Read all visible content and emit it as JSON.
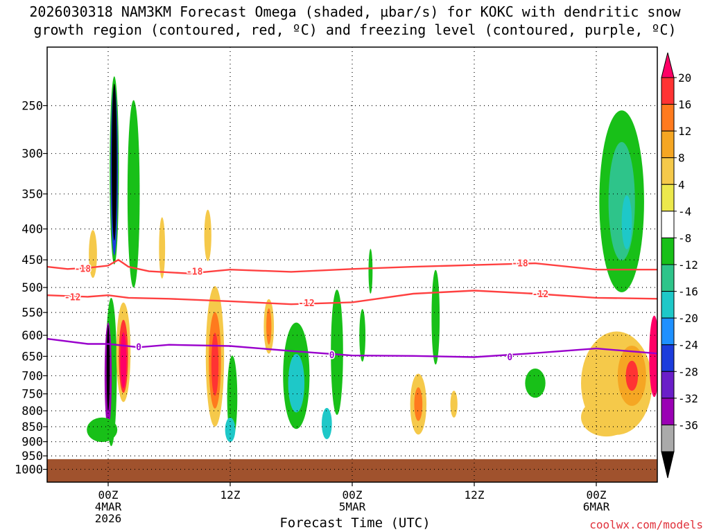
{
  "title_line1": "2026030318 NAM3KM Forecast Omega (shaded, µbar/s) for KOKC with dendritic snow",
  "title_line2": "growth region (contoured, red, ºC) and freezing level (contoured, purple, ºC)",
  "x_axis_title": "Forecast Time (UTC)",
  "credit": "coolwx.com/models",
  "chart_data": {
    "type": "heatmap",
    "title": "2026030318 NAM3KM Forecast Omega (shaded, µbar/s) for KOKC with dendritic snow growth region (contoured, red, ºC) and freezing level (contoured, purple, ºC)",
    "xlabel": "Forecast Time (UTC)",
    "ylabel": "",
    "x_range_hours_from_00Z_4MAR2026": [
      -6,
      54
    ],
    "y_range_hPa": [
      200,
      1050
    ],
    "y_scale": "log",
    "grid": true,
    "x_ticks": [
      {
        "hour": 0,
        "lines": [
          "00Z",
          "4MAR",
          "2026"
        ]
      },
      {
        "hour": 12,
        "lines": [
          "12Z"
        ]
      },
      {
        "hour": 24,
        "lines": [
          "00Z",
          "5MAR"
        ]
      },
      {
        "hour": 36,
        "lines": [
          "12Z"
        ]
      },
      {
        "hour": 48,
        "lines": [
          "00Z",
          "6MAR"
        ]
      }
    ],
    "y_ticks": [
      250,
      300,
      350,
      400,
      450,
      500,
      550,
      600,
      650,
      700,
      750,
      800,
      850,
      900,
      950,
      1000
    ],
    "colorbar": {
      "labels": [
        "20",
        "16",
        "12",
        "8",
        "4",
        "-4",
        "-8",
        "-12",
        "-16",
        "-20",
        "-24",
        "-28",
        "-32",
        "-36"
      ],
      "colors": [
        "#ff0066",
        "#ff3333",
        "#ff7a1e",
        "#f5a623",
        "#f5c94a",
        "#ece84c",
        "#ffffff",
        "#18c018",
        "#2ec48a",
        "#1ec8c8",
        "#1e90ff",
        "#1c3cdc",
        "#6a1ec8",
        "#9a00b4",
        "#aaaaaa",
        "#000000"
      ]
    },
    "ground_level_hPa": 962,
    "ground_color": "#a0522d",
    "contours": [
      {
        "level": "-18",
        "color": "#ff4040",
        "hours": [
          -6,
          -4,
          -2,
          0,
          1,
          2,
          4,
          8,
          12,
          18,
          24,
          30,
          36,
          42,
          48,
          54
        ],
        "hPa": [
          462,
          466,
          464,
          460,
          450,
          462,
          470,
          474,
          467,
          471,
          466,
          462,
          459,
          456,
          467,
          467
        ]
      },
      {
        "level": "-12",
        "color": "#ff4040",
        "hours": [
          -6,
          -2,
          0,
          2,
          6,
          12,
          18,
          24,
          30,
          36,
          42,
          48,
          54
        ],
        "hPa": [
          515,
          518,
          515,
          520,
          522,
          527,
          533,
          529,
          512,
          506,
          512,
          520,
          522
        ]
      },
      {
        "level": "0",
        "color": "#9900cc",
        "hours": [
          -6,
          -2,
          0,
          3,
          6,
          12,
          18,
          24,
          30,
          36,
          42,
          48,
          54
        ],
        "hPa": [
          608,
          620,
          620,
          628,
          622,
          625,
          637,
          648,
          649,
          652,
          642,
          631,
          643
        ]
      }
    ],
    "contour_labels": [
      {
        "text": "-18",
        "hour": -2.5,
        "hPa": 465,
        "color": "#ff4040"
      },
      {
        "text": "-18",
        "hour": 8.5,
        "hPa": 470,
        "color": "#ff4040"
      },
      {
        "text": "-18",
        "hour": 40.5,
        "hPa": 455,
        "color": "#ff4040"
      },
      {
        "text": "-12",
        "hour": -3.5,
        "hPa": 518,
        "color": "#ff4040"
      },
      {
        "text": "-12",
        "hour": 19.5,
        "hPa": 530,
        "color": "#ff4040"
      },
      {
        "text": "-12",
        "hour": 42.5,
        "hPa": 512,
        "color": "#ff4040"
      },
      {
        "text": "0",
        "hour": 3,
        "hPa": 627,
        "color": "#9900cc"
      },
      {
        "text": "0",
        "hour": 22,
        "hPa": 646,
        "color": "#9900cc"
      },
      {
        "text": "0",
        "hour": 39.5,
        "hPa": 651,
        "color": "#9900cc"
      }
    ],
    "omega_features": [
      {
        "hour": 0.6,
        "hPa": 320,
        "rh": 0.45,
        "rp": 110,
        "color": "#18c018"
      },
      {
        "hour": 0.6,
        "hPa": 320,
        "rh": 0.35,
        "rp": 100,
        "color": "#1c3cdc"
      },
      {
        "hour": 0.6,
        "hPa": 310,
        "rh": 0.25,
        "rp": 90,
        "color": "#000000"
      },
      {
        "hour": 0.3,
        "hPa": 690,
        "rh": 0.55,
        "rp": 190,
        "color": "#18c018"
      },
      {
        "hour": 0.0,
        "hPa": 700,
        "rh": 0.35,
        "rp": 140,
        "color": "#9a00b4"
      },
      {
        "hour": 0.0,
        "hPa": 680,
        "rh": 0.15,
        "rp": 110,
        "color": "#000000"
      },
      {
        "hour": -0.6,
        "hPa": 860,
        "rh": 1.5,
        "rp": 40,
        "color": "#18c018"
      },
      {
        "hour": 1.5,
        "hPa": 640,
        "rh": 0.7,
        "rp": 120,
        "color": "#f5c94a"
      },
      {
        "hour": 1.5,
        "hPa": 650,
        "rh": 0.45,
        "rp": 90,
        "color": "#ff3333"
      },
      {
        "hour": 1.5,
        "hPa": 660,
        "rh": 0.3,
        "rp": 70,
        "color": "#ff0066"
      },
      {
        "hour": 2.5,
        "hPa": 350,
        "rh": 0.6,
        "rp": 120,
        "color": "#18c018"
      },
      {
        "hour": -1.5,
        "hPa": 440,
        "rh": 0.4,
        "rp": 40,
        "color": "#f5c94a"
      },
      {
        "hour": 5.3,
        "hPa": 430,
        "rh": 0.3,
        "rp": 50,
        "color": "#f5c94a"
      },
      {
        "hour": 9.8,
        "hPa": 410,
        "rh": 0.35,
        "rp": 40,
        "color": "#f5c94a"
      },
      {
        "hour": 10.5,
        "hPa": 650,
        "rh": 0.9,
        "rp": 170,
        "color": "#f5c94a"
      },
      {
        "hour": 10.5,
        "hPa": 660,
        "rh": 0.6,
        "rp": 120,
        "color": "#ff7a1e"
      },
      {
        "hour": 10.5,
        "hPa": 670,
        "rh": 0.35,
        "rp": 80,
        "color": "#ff3333"
      },
      {
        "hour": 12.2,
        "hPa": 760,
        "rh": 0.5,
        "rp": 120,
        "color": "#18c018"
      },
      {
        "hour": 12.0,
        "hPa": 860,
        "rh": 0.5,
        "rp": 40,
        "color": "#1ec8c8"
      },
      {
        "hour": 15.8,
        "hPa": 580,
        "rh": 0.5,
        "rp": 60,
        "color": "#f5c94a"
      },
      {
        "hour": 15.8,
        "hPa": 580,
        "rh": 0.25,
        "rp": 40,
        "color": "#ff7a1e"
      },
      {
        "hour": 18.5,
        "hPa": 700,
        "rh": 1.3,
        "rp": 140,
        "color": "#18c018"
      },
      {
        "hour": 18.5,
        "hPa": 720,
        "rh": 0.8,
        "rp": 80,
        "color": "#1ec8c8"
      },
      {
        "hour": 22.5,
        "hPa": 640,
        "rh": 0.6,
        "rp": 150,
        "color": "#18c018"
      },
      {
        "hour": 21.5,
        "hPa": 840,
        "rh": 0.5,
        "rp": 50,
        "color": "#1ec8c8"
      },
      {
        "hour": 25.8,
        "hPa": 470,
        "rh": 0.2,
        "rp": 40,
        "color": "#18c018"
      },
      {
        "hour": 25.0,
        "hPa": 600,
        "rh": 0.3,
        "rp": 60,
        "color": "#18c018"
      },
      {
        "hour": 30.5,
        "hPa": 780,
        "rh": 0.8,
        "rp": 90,
        "color": "#f5c94a"
      },
      {
        "hour": 30.5,
        "hPa": 780,
        "rh": 0.4,
        "rp": 50,
        "color": "#ff7a1e"
      },
      {
        "hour": 32.2,
        "hPa": 560,
        "rh": 0.4,
        "rp": 100,
        "color": "#18c018"
      },
      {
        "hour": 34.0,
        "hPa": 780,
        "rh": 0.35,
        "rp": 40,
        "color": "#f5c94a"
      },
      {
        "hour": 42.0,
        "hPa": 720,
        "rh": 1.0,
        "rp": 40,
        "color": "#18c018"
      },
      {
        "hour": 50.5,
        "hPa": 360,
        "rh": 2.2,
        "rp": 120,
        "color": "#18c018"
      },
      {
        "hour": 50.5,
        "hPa": 360,
        "rh": 1.3,
        "rp": 80,
        "color": "#2ec48a"
      },
      {
        "hour": 51.0,
        "hPa": 390,
        "rh": 0.5,
        "rp": 40,
        "color": "#1ec8c8"
      },
      {
        "hour": 50.0,
        "hPa": 720,
        "rh": 3.5,
        "rp": 140,
        "color": "#f5c94a"
      },
      {
        "hour": 51.5,
        "hPa": 700,
        "rh": 1.4,
        "rp": 80,
        "color": "#f5a623"
      },
      {
        "hour": 51.5,
        "hPa": 700,
        "rh": 0.6,
        "rp": 40,
        "color": "#ff3333"
      },
      {
        "hour": 53.7,
        "hPa": 650,
        "rh": 0.5,
        "rp": 100,
        "color": "#ff0066"
      },
      {
        "hour": 49.0,
        "hPa": 820,
        "rh": 2.5,
        "rp": 60,
        "color": "#f5c94a"
      }
    ]
  }
}
